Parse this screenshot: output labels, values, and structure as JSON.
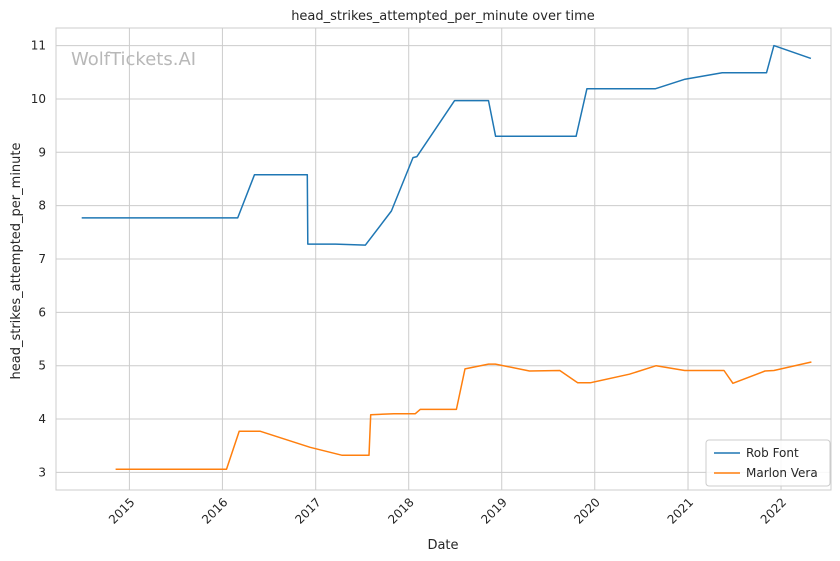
{
  "chart_data": {
    "type": "line",
    "title": "head_strikes_attempted_per_minute over time",
    "xlabel": "Date",
    "ylabel": "head_strikes_attempted_per_minute",
    "watermark": "WolfTickets.AI",
    "x_ticks": [
      "2015",
      "2016",
      "2017",
      "2018",
      "2019",
      "2020",
      "2021",
      "2022"
    ],
    "y_ticks": [
      "3",
      "4",
      "5",
      "6",
      "7",
      "8",
      "9",
      "10",
      "11"
    ],
    "xlim": [
      "2014-03-19",
      "2022-07-16"
    ],
    "ylim": [
      2.67,
      11.33
    ],
    "grid": true,
    "legend_position": "lower right",
    "series": [
      {
        "name": "Rob Font",
        "color": "#1f77b4",
        "points": [
          [
            "2014-06-28",
            7.77
          ],
          [
            "2016-03-01",
            7.77
          ],
          [
            "2016-05-06",
            8.58
          ],
          [
            "2016-11-29",
            8.58
          ],
          [
            "2016-12-01",
            7.28
          ],
          [
            "2017-03-20",
            7.28
          ],
          [
            "2017-07-15",
            7.26
          ],
          [
            "2017-10-25",
            7.9
          ],
          [
            "2018-01-18",
            8.9
          ],
          [
            "2018-02-02",
            8.92
          ],
          [
            "2018-06-30",
            9.97
          ],
          [
            "2018-11-10",
            9.97
          ],
          [
            "2018-12-08",
            9.3
          ],
          [
            "2019-10-20",
            9.3
          ],
          [
            "2019-12-01",
            10.19
          ],
          [
            "2020-08-25",
            10.19
          ],
          [
            "2020-12-20",
            10.37
          ],
          [
            "2021-05-15",
            10.49
          ],
          [
            "2021-11-05",
            10.49
          ],
          [
            "2021-12-04",
            11.0
          ],
          [
            "2022-04-28",
            10.76
          ]
        ]
      },
      {
        "name": "Marlon Vera",
        "color": "#ff7f0e",
        "points": [
          [
            "2014-11-08",
            3.06
          ],
          [
            "2016-01-17",
            3.06
          ],
          [
            "2016-03-07",
            3.77
          ],
          [
            "2016-05-29",
            3.77
          ],
          [
            "2016-12-10",
            3.47
          ],
          [
            "2017-04-15",
            3.32
          ],
          [
            "2017-07-29",
            3.32
          ],
          [
            "2017-08-05",
            4.08
          ],
          [
            "2017-11-04",
            4.1
          ],
          [
            "2018-01-27",
            4.1
          ],
          [
            "2018-02-15",
            4.18
          ],
          [
            "2018-07-07",
            4.18
          ],
          [
            "2018-08-10",
            4.94
          ],
          [
            "2018-11-10",
            5.03
          ],
          [
            "2018-12-07",
            5.03
          ],
          [
            "2019-04-20",
            4.9
          ],
          [
            "2019-08-17",
            4.91
          ],
          [
            "2019-10-26",
            4.68
          ],
          [
            "2019-12-14",
            4.68
          ],
          [
            "2020-05-16",
            4.84
          ],
          [
            "2020-08-29",
            5.0
          ],
          [
            "2020-12-19",
            4.91
          ],
          [
            "2021-05-22",
            4.91
          ],
          [
            "2021-06-26",
            4.67
          ],
          [
            "2021-10-30",
            4.9
          ],
          [
            "2021-12-04",
            4.91
          ],
          [
            "2022-04-30",
            5.07
          ]
        ]
      }
    ]
  }
}
